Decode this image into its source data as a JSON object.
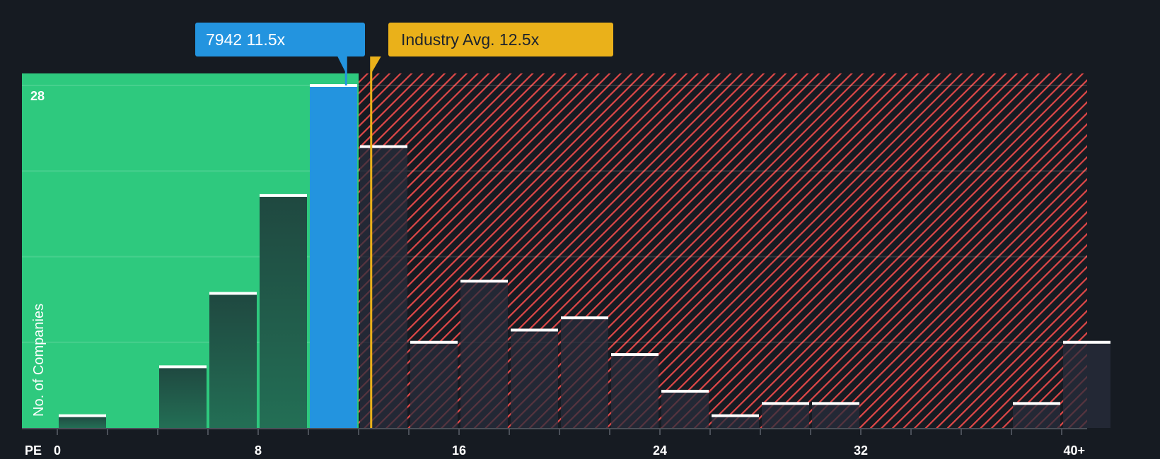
{
  "chart_data": {
    "type": "bar",
    "title": "",
    "xlabel": "PE",
    "ylabel": "No. of Companies",
    "x_tick_labels": [
      "0",
      "8",
      "16",
      "24",
      "32",
      "40+"
    ],
    "y_tick_labels": [
      "28"
    ],
    "ylim": [
      0,
      28
    ],
    "grid": true,
    "bins": [
      "0-2",
      "2-4",
      "4-6",
      "6-8",
      "8-10",
      "10-12",
      "12-14",
      "14-16",
      "16-18",
      "18-20",
      "20-22",
      "22-24",
      "24-26",
      "26-28",
      "28-30",
      "30-32",
      "32-34",
      "34-36",
      "36-38",
      "38-40",
      "40+"
    ],
    "values": [
      1,
      0,
      5,
      11,
      19,
      28,
      23,
      7,
      12,
      8,
      9,
      6,
      3,
      1,
      2,
      2,
      0,
      0,
      0,
      2,
      7
    ],
    "highlighted_bin": "10-12",
    "company": {
      "ticker": "7942",
      "pe": 11.5,
      "label": "7942 11.5x"
    },
    "industry_avg": {
      "pe": 12.5,
      "label": "Industry Avg. 12.5x"
    },
    "regions": [
      {
        "name": "below-industry",
        "from": 0,
        "to": 12,
        "color": "#2ec97e"
      },
      {
        "name": "above-industry",
        "from": 12,
        "to": 42,
        "color": "#e04848",
        "pattern": "diagonal-hatch"
      }
    ]
  },
  "labels": {
    "company_callout": "7942 11.5x",
    "industry_callout": "Industry Avg. 12.5x",
    "pe_axis": "PE",
    "y_axis": "No. of Companies",
    "y_max": "28",
    "x_ticks": [
      {
        "text": "0",
        "pe": 0
      },
      {
        "text": "8",
        "pe": 8
      },
      {
        "text": "16",
        "pe": 16
      },
      {
        "text": "24",
        "pe": 24
      },
      {
        "text": "32",
        "pe": 32
      },
      {
        "text": "40+",
        "pe": 40.5
      }
    ]
  },
  "colors": {
    "background": "#161b22",
    "green_zone": "#2ec97e",
    "company_blue": "#2394df",
    "industry_gold": "#eab11a",
    "hatch_red": "#e04848",
    "bar_dark": "#1f4a40",
    "bar_cap": "#ffffff"
  }
}
